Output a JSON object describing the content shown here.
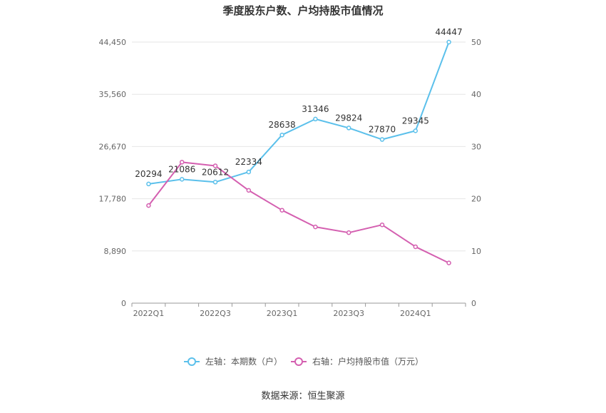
{
  "chart_data": {
    "type": "line",
    "title": "季度股东户数、户均持股市值情况",
    "categories": [
      "2022Q1",
      "2022Q2",
      "2022Q3",
      "2022Q4",
      "2023Q1",
      "2023Q2",
      "2023Q3",
      "2023Q4",
      "2024Q1",
      "2024Q2"
    ],
    "x_tick_labels": [
      "2022Q1",
      "",
      "2022Q3",
      "",
      "2023Q1",
      "",
      "2023Q3",
      "",
      "2024Q1",
      ""
    ],
    "left_axis": {
      "ylim": [
        0,
        44450
      ],
      "ticks": [
        0,
        8890,
        17780,
        26670,
        35560,
        44450
      ],
      "tick_labels": [
        "0",
        "8,890",
        "17,780",
        "26,670",
        "35,560",
        "44,450"
      ]
    },
    "right_axis": {
      "ylim": [
        0,
        50
      ],
      "ticks": [
        0,
        10,
        20,
        30,
        40,
        50
      ],
      "tick_labels": [
        "0",
        "10",
        "20",
        "30",
        "40",
        "50"
      ]
    },
    "series": [
      {
        "name": "左轴：本期数（户）",
        "axis": "left",
        "color": "#5bc0eb",
        "values": [
          20294,
          21086,
          20612,
          22334,
          28638,
          31346,
          29824,
          27870,
          29345,
          44447
        ],
        "labels": [
          "20294",
          "21086",
          "20612",
          "22334",
          "28638",
          "31346",
          "29824",
          "27870",
          "29345",
          "44447"
        ]
      },
      {
        "name": "右轴：户均持股市值（万元）",
        "axis": "right",
        "color": "#d45fb0",
        "values": [
          18.7,
          27.0,
          26.3,
          21.6,
          17.8,
          14.6,
          13.5,
          15.0,
          10.8,
          7.7
        ]
      }
    ],
    "grid": true,
    "legend_position": "bottom-center"
  },
  "footer": {
    "source": "数据来源：恒生聚源"
  }
}
